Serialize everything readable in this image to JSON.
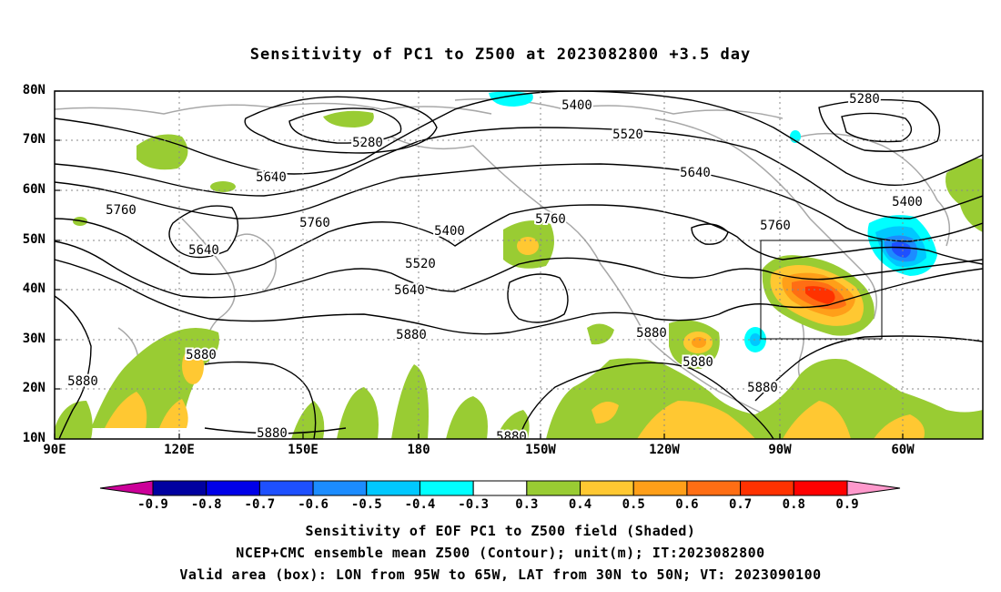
{
  "title": "Sensitivity of PC1 to Z500 at 2023082800 +3.5 day",
  "y_ticks": [
    "80N",
    "70N",
    "60N",
    "50N",
    "40N",
    "30N",
    "20N",
    "10N"
  ],
  "x_ticks": [
    "90E",
    "120E",
    "150E",
    "180",
    "150W",
    "120W",
    "90W",
    "60W"
  ],
  "contour_labels": [
    "5400",
    "5280",
    "5520",
    "5640",
    "5280",
    "5400",
    "5760",
    "5640",
    "5760",
    "5400",
    "5640",
    "5520",
    "5760",
    "5640",
    "5760",
    "5880",
    "5880",
    "5880",
    "5880",
    "5880",
    "5880",
    "5880",
    "5880"
  ],
  "colorbar": {
    "ticks": [
      "-0.9",
      "-0.8",
      "-0.7",
      "-0.6",
      "-0.5",
      "-0.4",
      "-0.3",
      "0.3",
      "0.4",
      "0.5",
      "0.6",
      "0.7",
      "0.8",
      "0.9"
    ],
    "colors": [
      "#0000a0",
      "#0000e8",
      "#1e50ff",
      "#1c8cff",
      "#00c8ff",
      "#00ffff",
      "#ffffff",
      "#99cc33",
      "#ffc832",
      "#ff9f19",
      "#ff6e14",
      "#ff3200",
      "#ff0000"
    ],
    "low_end_color": "#cc0099",
    "high_end_color": "#ff99cc"
  },
  "captions": [
    "Sensitivity of EOF PC1 to Z500 field (Shaded)",
    "NCEP+CMC ensemble mean Z500 (Contour); unit(m); IT:2023082800",
    "Valid area (box): LON from 95W to 65W, LAT from 30N to 50N; VT: 2023090100"
  ],
  "valid_box": {
    "lon": [
      "95W",
      "65W"
    ],
    "lat": [
      "30N",
      "50N"
    ]
  }
}
